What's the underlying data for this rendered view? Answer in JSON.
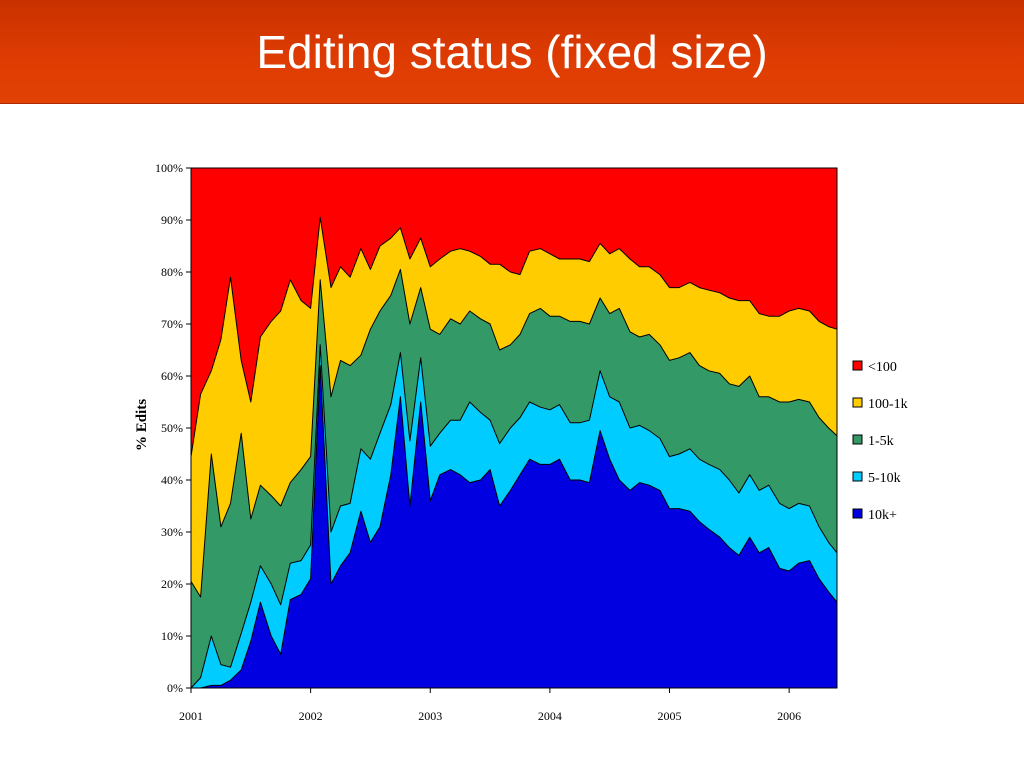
{
  "slide": {
    "title": "Editing status (fixed size)"
  },
  "chart_data": {
    "type": "area",
    "stacked": "percent",
    "title": "",
    "xlabel": "",
    "ylabel": "% Edits",
    "ylim": [
      0,
      100
    ],
    "y_ticks": [
      "0%",
      "10%",
      "20%",
      "30%",
      "40%",
      "50%",
      "60%",
      "70%",
      "80%",
      "90%",
      "100%"
    ],
    "x_ticks": [
      {
        "label": "2001",
        "value": 2001.0
      },
      {
        "label": "2002",
        "value": 2002.0
      },
      {
        "label": "2003",
        "value": 2003.0
      },
      {
        "label": "2004",
        "value": 2004.0
      },
      {
        "label": "2005",
        "value": 2005.0
      },
      {
        "label": "2006",
        "value": 2006.0
      }
    ],
    "x_range": [
      2001.0,
      2006.4
    ],
    "legend_position": "right",
    "grid": false,
    "x": [
      2001.0,
      2001.08,
      2001.17,
      2001.25,
      2001.33,
      2001.42,
      2001.5,
      2001.58,
      2001.67,
      2001.75,
      2001.83,
      2001.92,
      2002.0,
      2002.08,
      2002.17,
      2002.25,
      2002.33,
      2002.42,
      2002.5,
      2002.58,
      2002.67,
      2002.75,
      2002.83,
      2002.92,
      2003.0,
      2003.08,
      2003.17,
      2003.25,
      2003.33,
      2003.42,
      2003.5,
      2003.58,
      2003.67,
      2003.75,
      2003.83,
      2003.92,
      2004.0,
      2004.08,
      2004.17,
      2004.25,
      2004.33,
      2004.42,
      2004.5,
      2004.58,
      2004.67,
      2004.75,
      2004.83,
      2004.92,
      2005.0,
      2005.08,
      2005.17,
      2005.25,
      2005.33,
      2005.42,
      2005.5,
      2005.58,
      2005.67,
      2005.75,
      2005.83,
      2005.92,
      2006.0,
      2006.08,
      2006.17,
      2006.25,
      2006.33,
      2006.4
    ],
    "series": [
      {
        "name": "10k+",
        "color": "#0000e0",
        "cumulative": [
          0,
          0,
          0.5,
          0.5,
          1.5,
          3.5,
          9,
          16.5,
          10,
          6.5,
          17,
          18,
          21,
          62,
          20,
          23.5,
          26,
          34,
          28,
          31,
          41,
          56,
          35,
          55,
          36,
          41,
          42,
          41,
          39.5,
          40,
          42,
          35,
          38,
          41,
          44,
          43,
          43,
          44,
          40,
          40,
          39.5,
          49.5,
          44,
          40,
          38,
          39.5,
          39,
          38,
          34.5,
          34.5,
          34,
          32,
          30.5,
          29,
          27,
          25.5,
          29,
          26,
          27,
          23,
          22.5,
          24,
          24.5,
          21,
          18.5,
          16.5
        ]
      },
      {
        "name": "5-10k",
        "color": "#00ccff",
        "cumulative": [
          0,
          2,
          10,
          4.5,
          4,
          10.5,
          16.5,
          23.5,
          20,
          16,
          24,
          24.5,
          27.5,
          66,
          30,
          35,
          35.5,
          46,
          44,
          49,
          54.5,
          64.5,
          47.5,
          63.5,
          46.5,
          49,
          51.5,
          51.5,
          55,
          53,
          51.5,
          47,
          50,
          52,
          55,
          54,
          53.5,
          54.5,
          51,
          51,
          51.5,
          61,
          56,
          55,
          50,
          50.5,
          49.5,
          48,
          44.5,
          45,
          46,
          44,
          43,
          42,
          40,
          37.5,
          41,
          38,
          39,
          35.5,
          34.5,
          35.5,
          35,
          31,
          28,
          26
        ]
      },
      {
        "name": "1-5k",
        "color": "#339966",
        "cumulative": [
          20.5,
          17.5,
          45,
          31,
          35.5,
          49,
          32.5,
          39,
          37,
          35,
          39.5,
          42,
          44.5,
          78.5,
          56,
          63,
          62,
          64,
          69,
          72.5,
          75.5,
          80.5,
          70,
          77,
          69,
          68,
          71,
          70,
          72.5,
          71,
          70,
          65,
          66,
          68,
          72,
          73,
          71.5,
          71.5,
          70.5,
          70.5,
          70,
          75,
          72,
          73,
          68.5,
          67.5,
          68,
          66,
          63,
          63.5,
          64.5,
          62,
          61,
          60.5,
          58.5,
          58,
          60,
          56,
          56,
          55,
          55,
          55.5,
          55,
          52,
          50,
          48.5
        ]
      },
      {
        "name": "100-1k",
        "color": "#ffcc00",
        "cumulative": [
          44.5,
          56.5,
          61,
          67,
          79,
          63,
          55,
          67.5,
          70.5,
          72.5,
          78.5,
          74.5,
          73,
          90.5,
          77,
          81,
          79,
          84.5,
          80.5,
          85,
          86.5,
          88.5,
          82.5,
          86.5,
          81,
          82.5,
          84,
          84.5,
          84,
          83,
          81.5,
          81.5,
          80,
          79.5,
          84,
          84.5,
          83.5,
          82.5,
          82.5,
          82.5,
          82,
          85.5,
          83.5,
          84.5,
          82.5,
          81,
          81,
          79.5,
          77,
          77,
          78,
          77,
          76.5,
          76,
          75,
          74.5,
          74.5,
          72,
          71.5,
          71.5,
          72.5,
          73,
          72.5,
          70.5,
          69.5,
          69
        ]
      },
      {
        "name": "<100",
        "color": "#ff0000",
        "cumulative": [
          100,
          100,
          100,
          100,
          100,
          100,
          100,
          100,
          100,
          100,
          100,
          100,
          100,
          100,
          100,
          100,
          100,
          100,
          100,
          100,
          100,
          100,
          100,
          100,
          100,
          100,
          100,
          100,
          100,
          100,
          100,
          100,
          100,
          100,
          100,
          100,
          100,
          100,
          100,
          100,
          100,
          100,
          100,
          100,
          100,
          100,
          100,
          100,
          100,
          100,
          100,
          100,
          100,
          100,
          100,
          100,
          100,
          100,
          100,
          100,
          100,
          100,
          100,
          100,
          100,
          100
        ]
      }
    ],
    "legend": [
      "<100",
      "100-1k",
      "1-5k",
      "5-10k",
      "10k+"
    ]
  }
}
